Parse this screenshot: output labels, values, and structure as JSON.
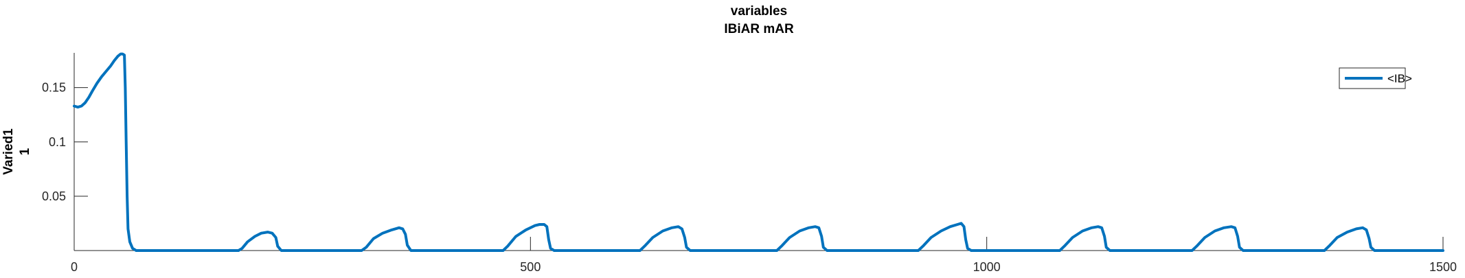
{
  "chart_data": {
    "type": "line",
    "title": "variables",
    "subtitle": "IBiAR mAR",
    "xlabel": "",
    "ylabel": [
      "Varied1",
      "1"
    ],
    "xlim": [
      0,
      1500
    ],
    "ylim": [
      0,
      0.182
    ],
    "xticks": [
      0,
      500,
      1000,
      1500
    ],
    "xtick_labels": [
      "0",
      "500",
      "1000",
      "1500"
    ],
    "yticks": [
      0.05,
      0.1,
      0.15
    ],
    "ytick_labels": [
      "0.05",
      "0.1",
      "0.15"
    ],
    "grid": false,
    "legend_position": "top-right",
    "series": [
      {
        "name": "<IB>",
        "color": "#0072BD",
        "points": [
          [
            0,
            0.133
          ],
          [
            4,
            0.132
          ],
          [
            8,
            0.133
          ],
          [
            12,
            0.136
          ],
          [
            16,
            0.141
          ],
          [
            20,
            0.147
          ],
          [
            25,
            0.154
          ],
          [
            30,
            0.16
          ],
          [
            35,
            0.165
          ],
          [
            40,
            0.17
          ],
          [
            44,
            0.175
          ],
          [
            48,
            0.179
          ],
          [
            51,
            0.181
          ],
          [
            53,
            0.181
          ],
          [
            55,
            0.18
          ],
          [
            56,
            0.15
          ],
          [
            57,
            0.1
          ],
          [
            58,
            0.05
          ],
          [
            59,
            0.02
          ],
          [
            61,
            0.008
          ],
          [
            64,
            0.002
          ],
          [
            68,
            0.0
          ],
          [
            180,
            0.0
          ],
          [
            184,
            0.002
          ],
          [
            190,
            0.008
          ],
          [
            198,
            0.013
          ],
          [
            205,
            0.016
          ],
          [
            212,
            0.017
          ],
          [
            217,
            0.016
          ],
          [
            221,
            0.012
          ],
          [
            223,
            0.004
          ],
          [
            227,
            0.0
          ],
          [
            315,
            0.0
          ],
          [
            320,
            0.003
          ],
          [
            328,
            0.011
          ],
          [
            338,
            0.016
          ],
          [
            348,
            0.019
          ],
          [
            356,
            0.021
          ],
          [
            360,
            0.02
          ],
          [
            363,
            0.015
          ],
          [
            365,
            0.005
          ],
          [
            369,
            0.0
          ],
          [
            470,
            0.0
          ],
          [
            475,
            0.004
          ],
          [
            484,
            0.013
          ],
          [
            495,
            0.019
          ],
          [
            505,
            0.023
          ],
          [
            510,
            0.024
          ],
          [
            515,
            0.024
          ],
          [
            518,
            0.022
          ],
          [
            520,
            0.01
          ],
          [
            522,
            0.002
          ],
          [
            526,
            0.0
          ],
          [
            620,
            0.0
          ],
          [
            625,
            0.004
          ],
          [
            634,
            0.012
          ],
          [
            645,
            0.018
          ],
          [
            655,
            0.021
          ],
          [
            662,
            0.022
          ],
          [
            666,
            0.02
          ],
          [
            669,
            0.012
          ],
          [
            671,
            0.003
          ],
          [
            675,
            0.0
          ],
          [
            770,
            0.0
          ],
          [
            775,
            0.004
          ],
          [
            784,
            0.012
          ],
          [
            795,
            0.018
          ],
          [
            805,
            0.021
          ],
          [
            812,
            0.022
          ],
          [
            816,
            0.021
          ],
          [
            819,
            0.013
          ],
          [
            821,
            0.003
          ],
          [
            825,
            0.0
          ],
          [
            925,
            0.0
          ],
          [
            930,
            0.004
          ],
          [
            939,
            0.012
          ],
          [
            950,
            0.018
          ],
          [
            960,
            0.022
          ],
          [
            968,
            0.024
          ],
          [
            972,
            0.025
          ],
          [
            975,
            0.022
          ],
          [
            977,
            0.01
          ],
          [
            979,
            0.002
          ],
          [
            983,
            0.0
          ],
          [
            1080,
            0.0
          ],
          [
            1085,
            0.004
          ],
          [
            1094,
            0.012
          ],
          [
            1105,
            0.018
          ],
          [
            1115,
            0.021
          ],
          [
            1122,
            0.022
          ],
          [
            1126,
            0.021
          ],
          [
            1129,
            0.013
          ],
          [
            1131,
            0.003
          ],
          [
            1135,
            0.0
          ],
          [
            1225,
            0.0
          ],
          [
            1230,
            0.004
          ],
          [
            1239,
            0.012
          ],
          [
            1250,
            0.018
          ],
          [
            1260,
            0.021
          ],
          [
            1268,
            0.022
          ],
          [
            1272,
            0.021
          ],
          [
            1275,
            0.013
          ],
          [
            1277,
            0.003
          ],
          [
            1281,
            0.0
          ],
          [
            1370,
            0.0
          ],
          [
            1375,
            0.004
          ],
          [
            1384,
            0.012
          ],
          [
            1395,
            0.017
          ],
          [
            1405,
            0.02
          ],
          [
            1412,
            0.021
          ],
          [
            1416,
            0.019
          ],
          [
            1419,
            0.011
          ],
          [
            1421,
            0.003
          ],
          [
            1425,
            0.0
          ],
          [
            1500,
            0.0
          ]
        ]
      }
    ]
  }
}
